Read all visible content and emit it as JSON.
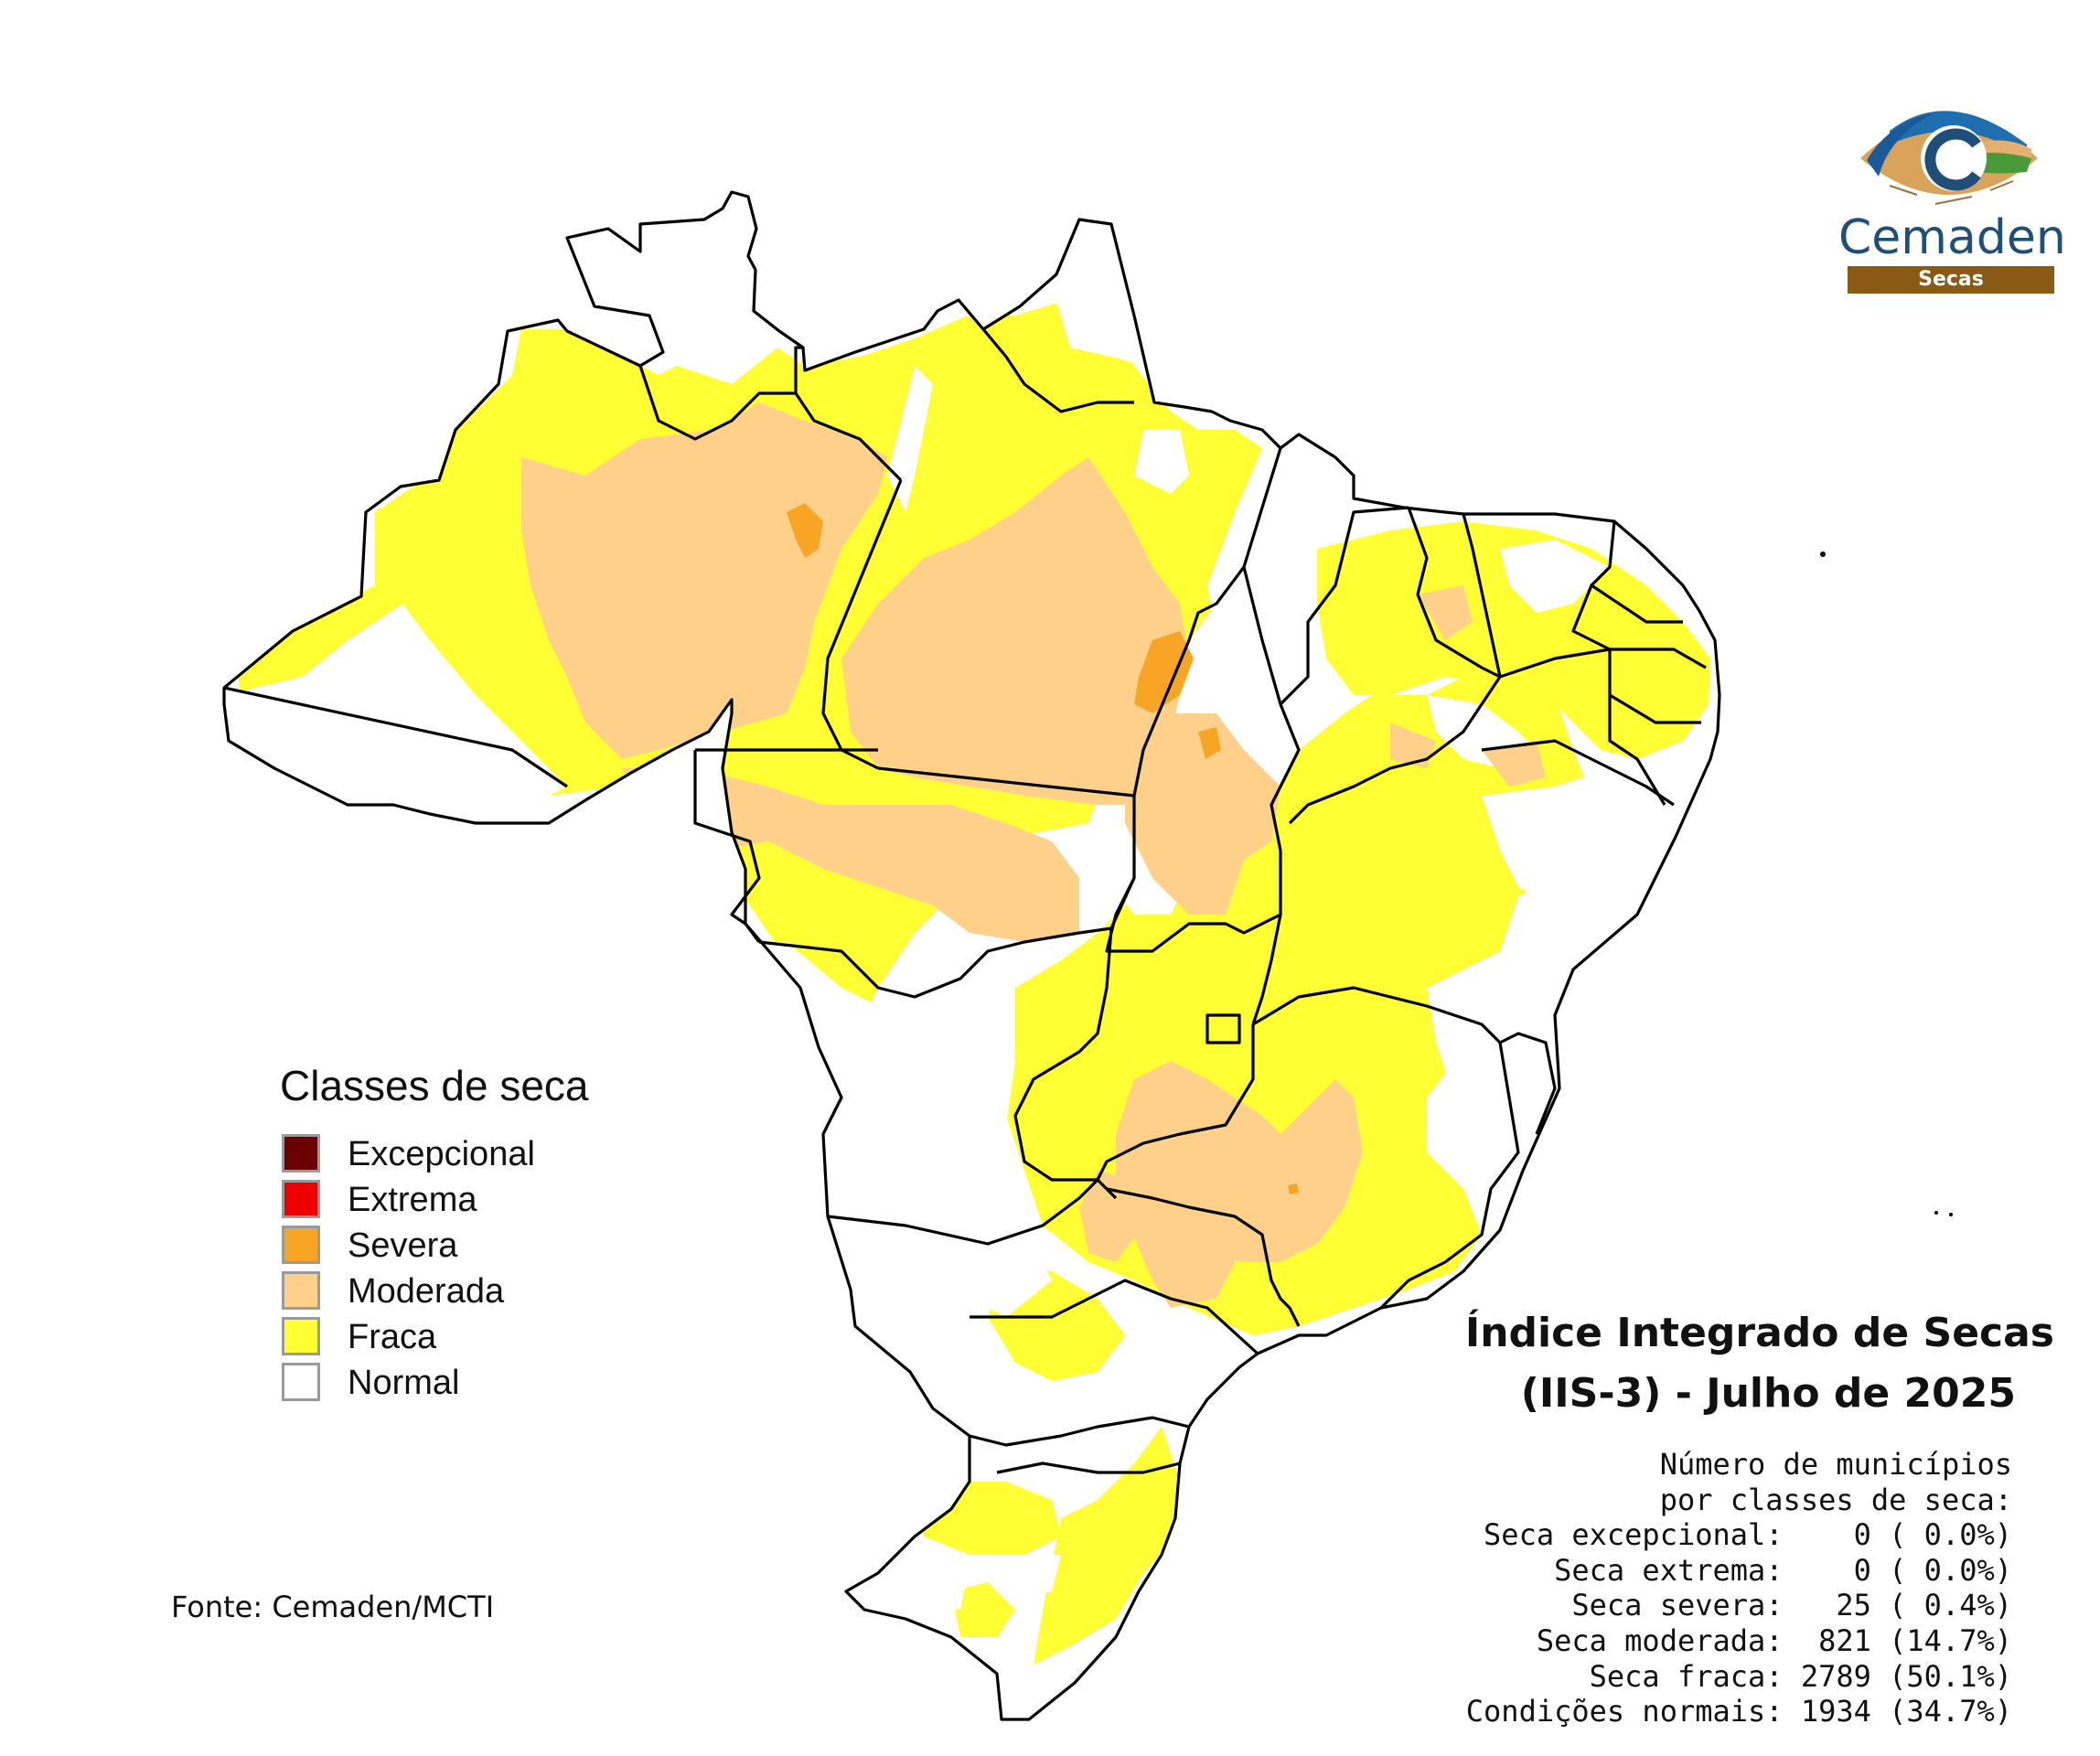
{
  "logo": {
    "name": "Cemaden",
    "subtitle": "Secas"
  },
  "legend": {
    "title": "Classes de seca",
    "items": [
      {
        "label": "Excepcional",
        "color": "#6b0000"
      },
      {
        "label": "Extrema",
        "color": "#ee0000"
      },
      {
        "label": "Severa",
        "color": "#f8a526"
      },
      {
        "label": "Moderada",
        "color": "#ffd08a"
      },
      {
        "label": "Fraca",
        "color": "#ffff33"
      },
      {
        "label": "Normal",
        "color": "#ffffff"
      }
    ]
  },
  "source": "Fonte: Cemaden/MCTI",
  "title": {
    "line1": "Índice Integrado de Secas",
    "line2": "(IIS-3) - Julho de 2025"
  },
  "stats": {
    "header1": "Número de municípios",
    "header2": "por classes de seca:",
    "rows": [
      {
        "label": "Seca excepcional:",
        "count": "0",
        "pct": "( 0.0%)"
      },
      {
        "label": "Seca extrema:",
        "count": "0",
        "pct": "( 0.0%)"
      },
      {
        "label": "Seca severa:",
        "count": "25",
        "pct": "( 0.4%)"
      },
      {
        "label": "Seca moderada:",
        "count": "821",
        "pct": "(14.7%)"
      },
      {
        "label": "Seca fraca:",
        "count": "2789",
        "pct": "(50.1%)"
      },
      {
        "label": "Condições normais:",
        "count": "1934",
        "pct": "(34.7%)"
      }
    ]
  },
  "colors": {
    "state_border": "#000000",
    "fraca": "#ffff33",
    "moderada": "#ffd08a",
    "severa": "#f8a526",
    "logo_blue": "#1f4e79",
    "logo_brown": "#8a5a14"
  }
}
